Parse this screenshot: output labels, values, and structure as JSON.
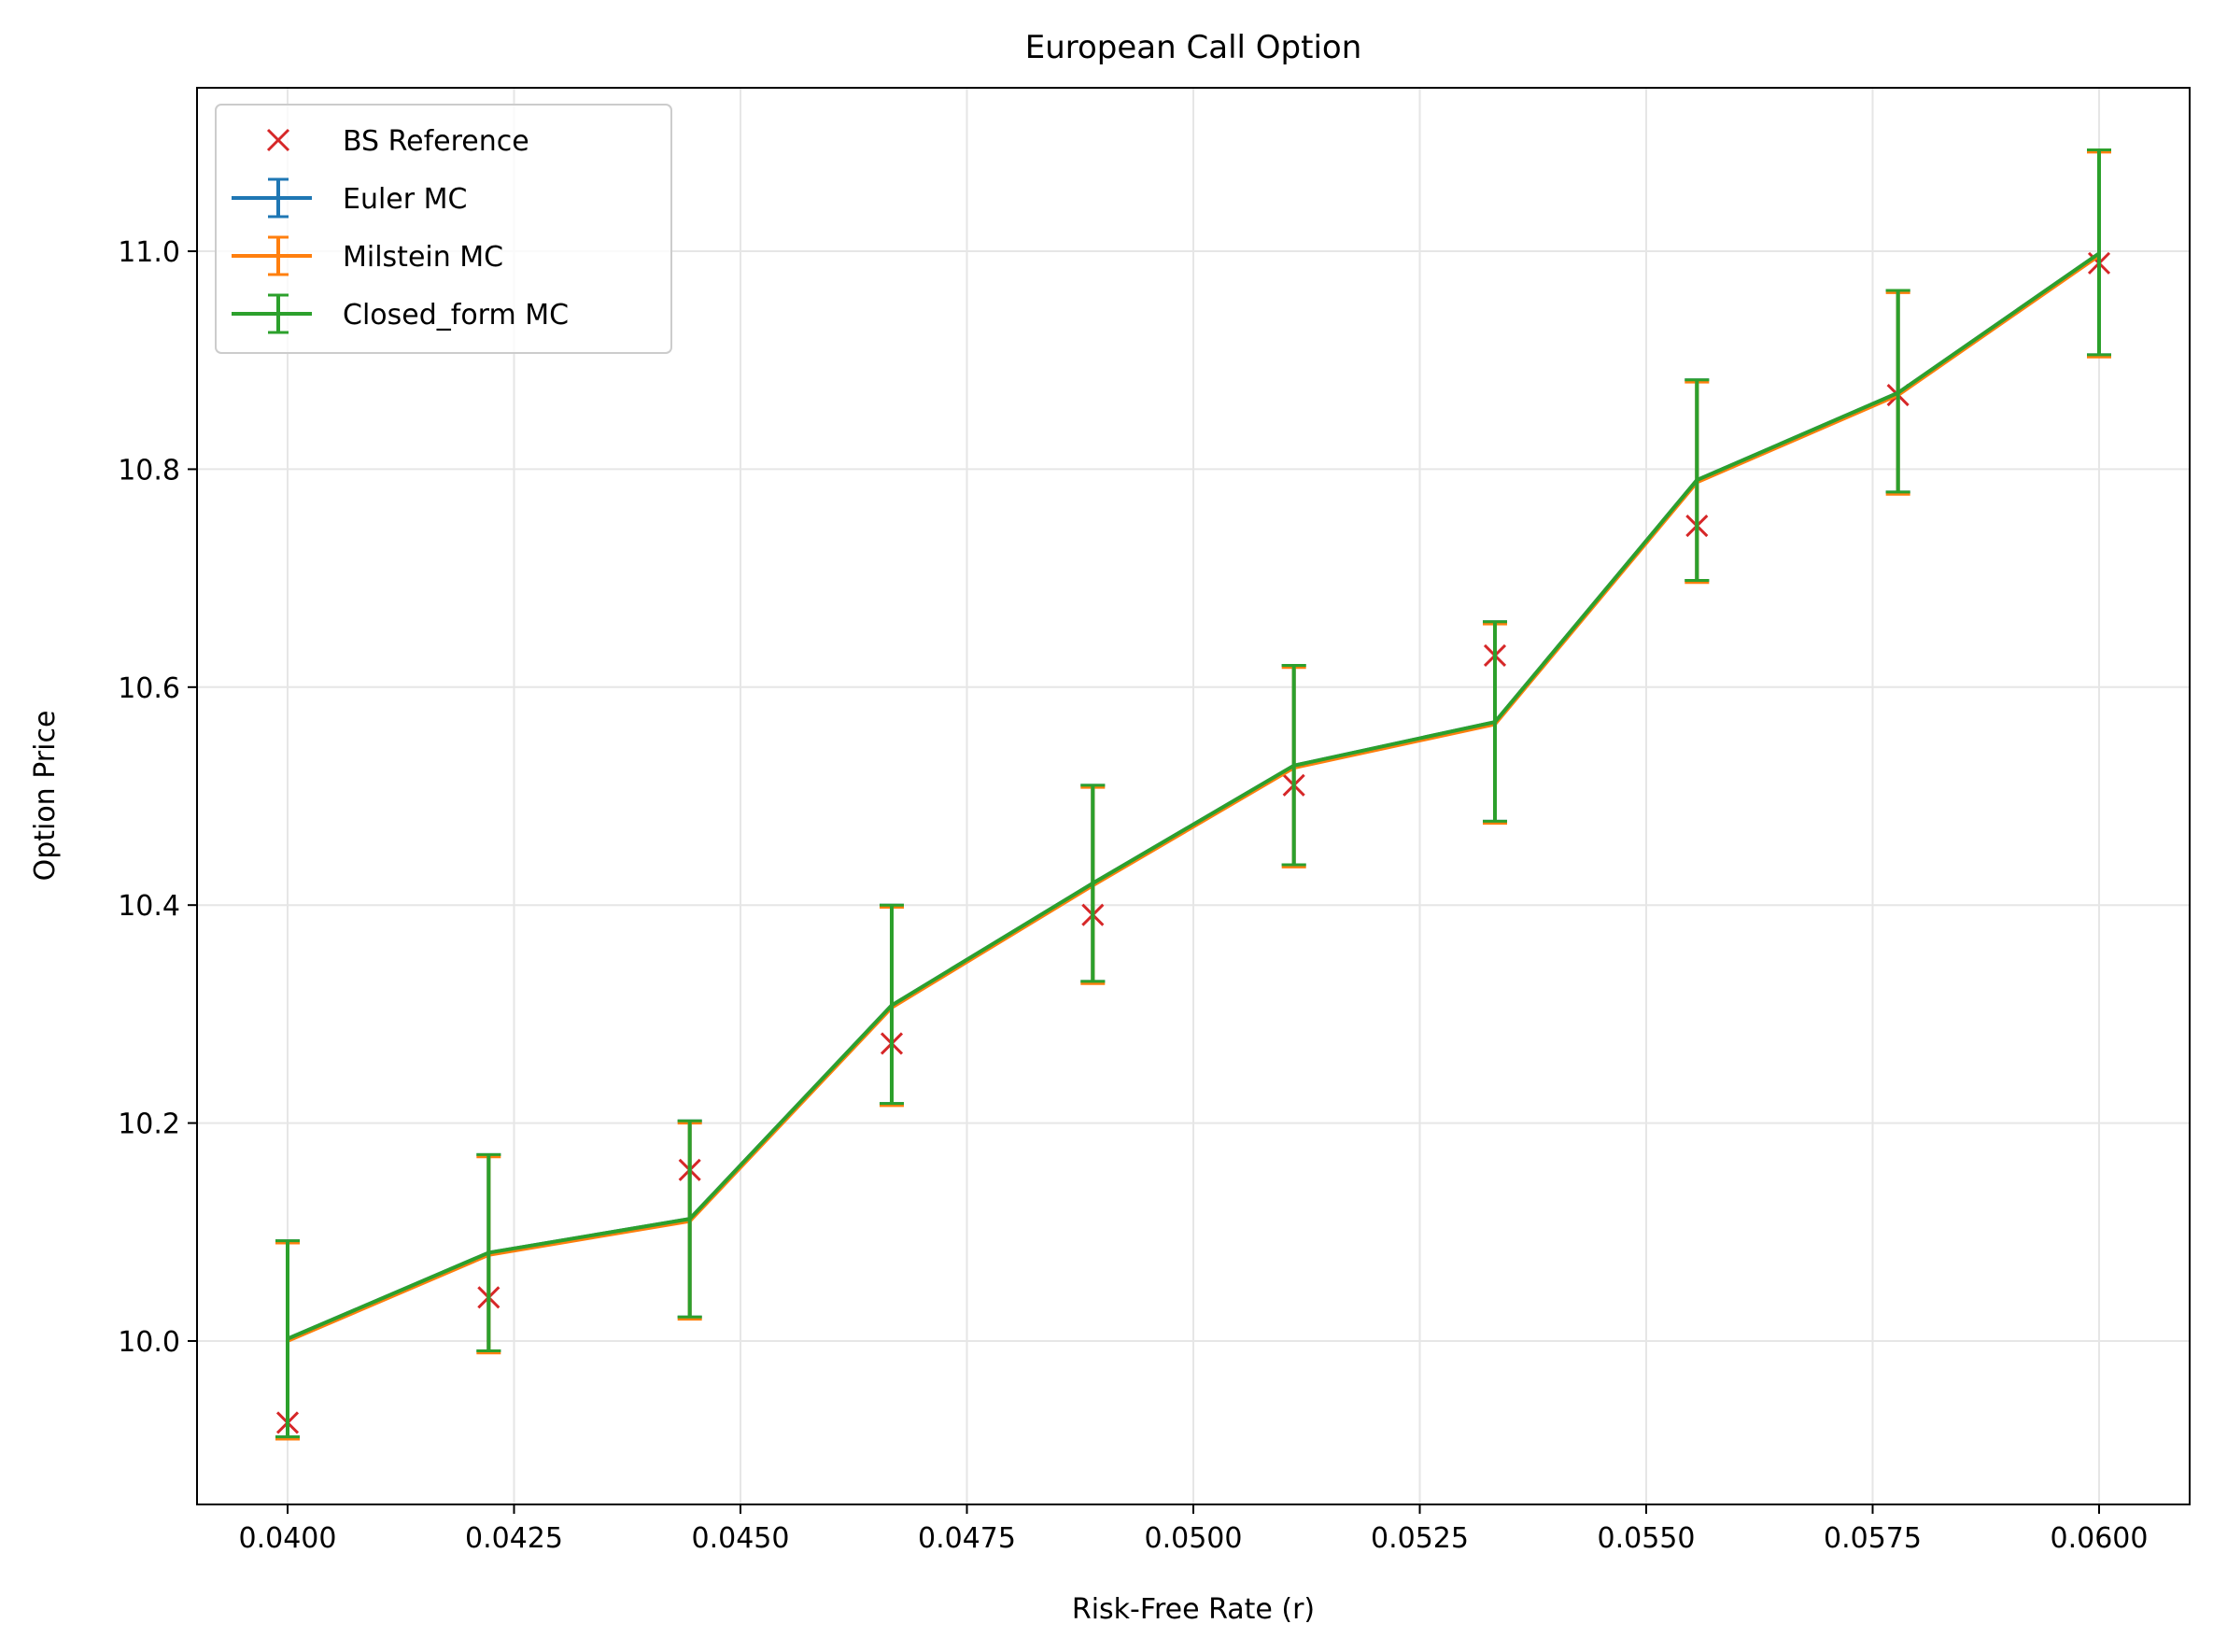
{
  "chart_data": {
    "type": "line",
    "title": "European Call Option",
    "xlabel": "Risk-Free Rate (r)",
    "ylabel": "Option Price",
    "xlim": [
      0.039,
      0.061
    ],
    "ylim": [
      9.85,
      11.15
    ],
    "grid": true,
    "legend_position": "upper-left",
    "x_ticks": [
      "0.0400",
      "0.0425",
      "0.0450",
      "0.0475",
      "0.0500",
      "0.0525",
      "0.0550",
      "0.0575",
      "0.0600"
    ],
    "y_ticks": [
      "10.0",
      "10.2",
      "10.4",
      "10.6",
      "10.8",
      "11.0"
    ],
    "x": [
      0.04,
      0.04222,
      0.04444,
      0.04667,
      0.04889,
      0.05111,
      0.05333,
      0.05556,
      0.05778,
      0.06
    ],
    "bs_reference": {
      "name": "BS Reference",
      "color": "#d62728",
      "marker": "x",
      "values": [
        9.925,
        10.04,
        10.157,
        10.273,
        10.391,
        10.51,
        10.629,
        10.748,
        10.868,
        10.989
      ]
    },
    "series": [
      {
        "name": "Euler MC",
        "color": "#1f77b4",
        "values": [
          10.002,
          10.081,
          10.112,
          10.308,
          10.42,
          10.528,
          10.568,
          10.79,
          10.87,
          10.998
        ],
        "lower": [
          9.912,
          9.991,
          10.022,
          10.218,
          10.33,
          10.437,
          10.477,
          10.698,
          10.779,
          10.905
        ],
        "upper": [
          10.092,
          10.171,
          10.202,
          10.4,
          10.51,
          10.62,
          10.66,
          10.882,
          10.964,
          11.093
        ]
      },
      {
        "name": "Milstein MC",
        "color": "#ff7f0e",
        "values": [
          10.0,
          10.079,
          10.11,
          10.306,
          10.418,
          10.526,
          10.566,
          10.788,
          10.868,
          10.996
        ],
        "lower": [
          9.91,
          9.989,
          10.02,
          10.216,
          10.328,
          10.435,
          10.475,
          10.696,
          10.777,
          10.903
        ],
        "upper": [
          10.09,
          10.169,
          10.2,
          10.398,
          10.508,
          10.618,
          10.658,
          10.88,
          10.962,
          11.091
        ]
      },
      {
        "name": "Closed_form MC",
        "color": "#2ca02c",
        "values": [
          10.002,
          10.081,
          10.112,
          10.308,
          10.42,
          10.528,
          10.568,
          10.79,
          10.87,
          10.998
        ],
        "lower": [
          9.912,
          9.991,
          10.022,
          10.218,
          10.33,
          10.437,
          10.477,
          10.698,
          10.779,
          10.905
        ],
        "upper": [
          10.092,
          10.171,
          10.202,
          10.4,
          10.51,
          10.62,
          10.66,
          10.882,
          10.964,
          11.093
        ]
      }
    ]
  }
}
